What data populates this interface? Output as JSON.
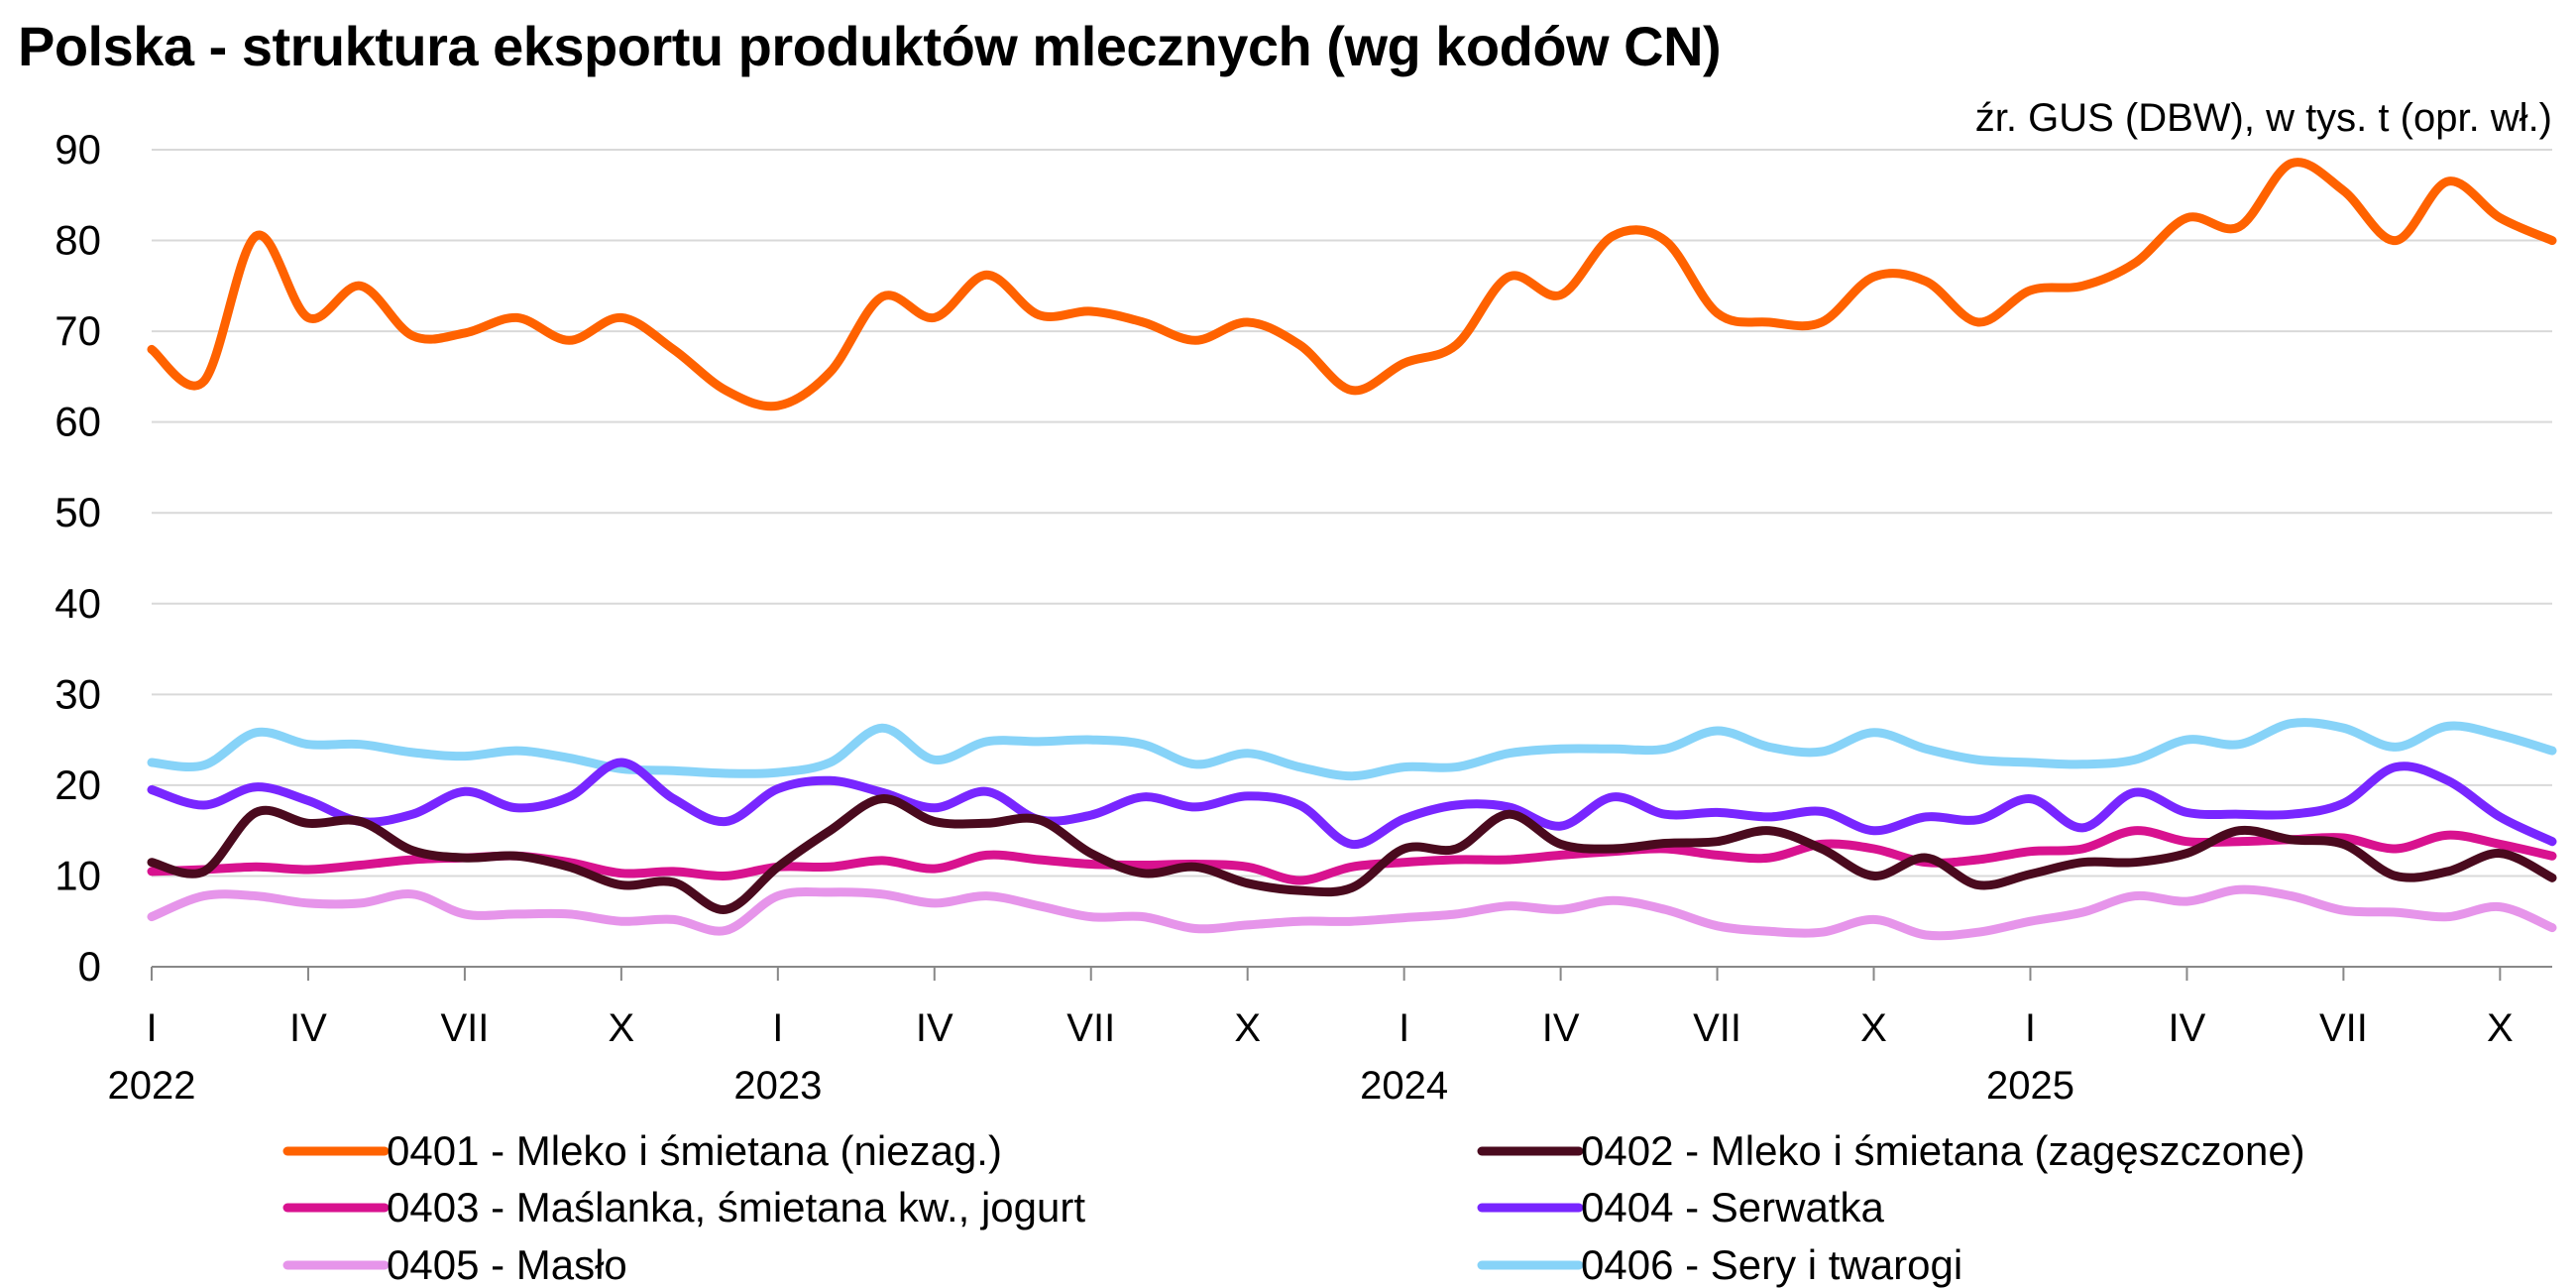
{
  "chart_data": {
    "type": "line",
    "title": "Polska - struktura eksportu produktów mlecznych (wg kodów CN)",
    "subtitle": "źr. GUS (DBW), w tys. t (opr. wł.)",
    "xlabel": "",
    "ylabel": "",
    "ylim": [
      0,
      90
    ],
    "yticks": [
      0,
      10,
      20,
      30,
      40,
      50,
      60,
      70,
      80,
      90
    ],
    "grid": true,
    "legend_position": "bottom",
    "x": [
      "2022-01",
      "2022-02",
      "2022-03",
      "2022-04",
      "2022-05",
      "2022-06",
      "2022-07",
      "2022-08",
      "2022-09",
      "2022-10",
      "2022-11",
      "2022-12",
      "2023-01",
      "2023-02",
      "2023-03",
      "2023-04",
      "2023-05",
      "2023-06",
      "2023-07",
      "2023-08",
      "2023-09",
      "2023-10",
      "2023-11",
      "2023-12",
      "2024-01",
      "2024-02",
      "2024-03",
      "2024-04",
      "2024-05",
      "2024-06",
      "2024-07",
      "2024-08",
      "2024-09",
      "2024-10",
      "2024-11",
      "2024-12",
      "2025-01",
      "2025-02",
      "2025-03",
      "2025-04",
      "2025-05",
      "2025-06",
      "2025-07",
      "2025-08",
      "2025-09",
      "2025-10",
      "2025-11"
    ],
    "x_tick_labels": [
      {
        "month": "2022-01",
        "label": "I",
        "year": "2022"
      },
      {
        "month": "2022-04",
        "label": "IV"
      },
      {
        "month": "2022-07",
        "label": "VII"
      },
      {
        "month": "2022-10",
        "label": "X"
      },
      {
        "month": "2023-01",
        "label": "I",
        "year": "2023"
      },
      {
        "month": "2023-04",
        "label": "IV"
      },
      {
        "month": "2023-07",
        "label": "VII"
      },
      {
        "month": "2023-10",
        "label": "X"
      },
      {
        "month": "2024-01",
        "label": "I",
        "year": "2024"
      },
      {
        "month": "2024-04",
        "label": "IV"
      },
      {
        "month": "2024-07",
        "label": "VII"
      },
      {
        "month": "2024-10",
        "label": "X"
      },
      {
        "month": "2025-01",
        "label": "I",
        "year": "2025"
      },
      {
        "month": "2025-04",
        "label": "IV"
      },
      {
        "month": "2025-07",
        "label": "VII"
      },
      {
        "month": "2025-10",
        "label": "X"
      }
    ],
    "series": [
      {
        "name": "0401 - Mleko i śmietana (niezag.)",
        "color": "#FF6200",
        "values": [
          68,
          64.5,
          80.5,
          71.5,
          75,
          69.5,
          69.8,
          71.5,
          69,
          71.5,
          68,
          63.5,
          61.8,
          65.5,
          73.8,
          71.5,
          76.2,
          71.8,
          72.2,
          71,
          69,
          71,
          68.5,
          63.5,
          66.5,
          68.5,
          76,
          74,
          80.5,
          80,
          72,
          71,
          71,
          76,
          75.5,
          71,
          74.5,
          75,
          77.5,
          82.5,
          81.5,
          88.5,
          85.5,
          80,
          86.5,
          82.5,
          80
        ]
      },
      {
        "name": "0402 - Mleko i śmietana (zagęszczone)",
        "color": "#4A0A1E",
        "values": [
          11.5,
          10.5,
          17,
          15.8,
          16,
          12.8,
          12,
          12.2,
          11,
          9,
          9.3,
          6.3,
          11,
          15,
          18.5,
          16,
          15.8,
          16.2,
          12.5,
          10.3,
          11,
          9.2,
          8.4,
          8.7,
          13,
          13,
          16.8,
          13.5,
          13,
          13.6,
          13.8,
          15,
          13,
          10,
          12,
          9,
          10.2,
          11.5,
          11.5,
          12.5,
          15,
          14,
          13.5,
          10,
          10.5,
          12.5,
          9.8
        ]
      },
      {
        "name": "0403 - Maślanka, śmietana kw., jogurt",
        "color": "#D8128F",
        "values": [
          10.5,
          10.7,
          11,
          10.7,
          11.2,
          11.8,
          12,
          12.2,
          11.5,
          10.3,
          10.5,
          10,
          11,
          11,
          11.7,
          10.8,
          12.3,
          11.8,
          11.3,
          11.2,
          11.3,
          11,
          9.5,
          11,
          11.5,
          11.8,
          11.8,
          12.3,
          12.7,
          13,
          12.3,
          12,
          13.5,
          13,
          11.5,
          11.8,
          12.7,
          13,
          15,
          13.8,
          13.8,
          14,
          14.2,
          13,
          14.5,
          13.5,
          12.2
        ]
      },
      {
        "name": "0404 - Serwatka",
        "color": "#7826FF",
        "values": [
          19.5,
          17.8,
          19.8,
          18.3,
          16,
          16.8,
          19.3,
          17.5,
          18.7,
          22.5,
          18.5,
          16,
          19.6,
          20.5,
          19.2,
          17.5,
          19.3,
          16.2,
          16.7,
          18.7,
          17.6,
          18.8,
          17.8,
          13.5,
          16.3,
          17.8,
          17.6,
          15.5,
          18.7,
          16.8,
          17,
          16.5,
          17.1,
          15,
          16.5,
          16.2,
          18.5,
          15.3,
          19.2,
          17,
          16.8,
          16.8,
          18,
          22,
          20.5,
          16.5,
          13.8
        ]
      },
      {
        "name": "0405 - Masło",
        "color": "#E695EA",
        "values": [
          5.5,
          7.8,
          7.8,
          7,
          7,
          8,
          5.8,
          5.8,
          5.8,
          5,
          5.2,
          4,
          7.8,
          8.2,
          8,
          7,
          7.8,
          6.7,
          5.5,
          5.5,
          4.2,
          4.6,
          5,
          5,
          5.4,
          5.8,
          6.7,
          6.3,
          7.3,
          6.3,
          4.5,
          3.9,
          3.8,
          5.2,
          3.5,
          3.8,
          5,
          6,
          7.8,
          7.2,
          8.5,
          7.8,
          6.2,
          6,
          5.5,
          6.6,
          4.3
        ]
      },
      {
        "name": "0406 - Sery i twarogi",
        "color": "#87D3F8",
        "values": [
          22.5,
          22.2,
          25.8,
          24.5,
          24.5,
          23.6,
          23.2,
          23.8,
          23,
          21.8,
          21.6,
          21.3,
          21.4,
          22.5,
          26.3,
          22.8,
          24.8,
          24.8,
          25,
          24.5,
          22.3,
          23.5,
          22,
          21,
          22,
          22,
          23.5,
          24,
          24,
          24,
          26,
          24.2,
          23.7,
          25.8,
          24,
          22.8,
          22.5,
          22.3,
          22.8,
          25,
          24.5,
          26.8,
          26.3,
          24.2,
          26.5,
          25.5,
          23.8
        ]
      }
    ]
  }
}
